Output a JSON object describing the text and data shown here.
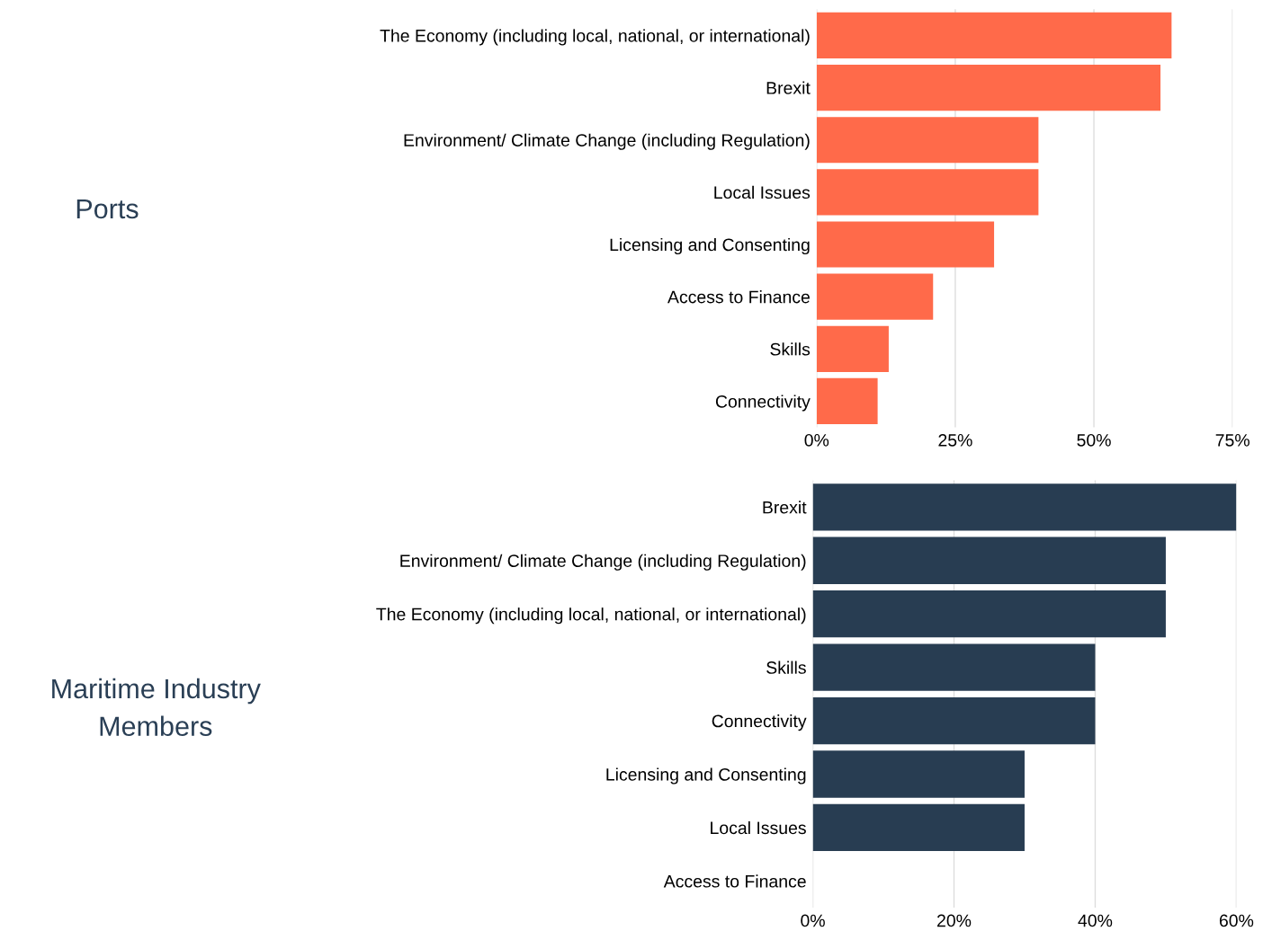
{
  "chart_data": [
    {
      "type": "bar",
      "orientation": "horizontal",
      "ylabel": "Ports",
      "categories": [
        "The Economy (including local, national, or international)",
        "Brexit",
        "Environment/ Climate Change (including Regulation)",
        "Local Issues",
        "Licensing and Consenting",
        "Access to Finance",
        "Skills",
        "Connectivity"
      ],
      "values": [
        64,
        62,
        40,
        40,
        32,
        21,
        13,
        11
      ],
      "color": "#ff6a4a",
      "xlim": [
        0,
        75
      ],
      "xticks": [
        {
          "value": 0,
          "label": "0%"
        },
        {
          "value": 25,
          "label": "25%"
        },
        {
          "value": 50,
          "label": "50%"
        },
        {
          "value": 75,
          "label": "75%"
        }
      ],
      "grid": "x"
    },
    {
      "type": "bar",
      "orientation": "horizontal",
      "ylabel": "Maritime Industry\nMembers",
      "categories": [
        "Brexit",
        "Environment/ Climate Change (including Regulation)",
        "The Economy (including local, national, or international)",
        "Skills",
        "Connectivity",
        "Licensing and Consenting",
        "Local Issues",
        "Access to Finance"
      ],
      "values": [
        60,
        50,
        50,
        40,
        40,
        30,
        30,
        0
      ],
      "color": "#283d52",
      "xlim": [
        0,
        60
      ],
      "xticks": [
        {
          "value": 0,
          "label": "0%"
        },
        {
          "value": 20,
          "label": "20%"
        },
        {
          "value": 40,
          "label": "40%"
        },
        {
          "value": 60,
          "label": "60%"
        }
      ],
      "grid": "x"
    }
  ]
}
